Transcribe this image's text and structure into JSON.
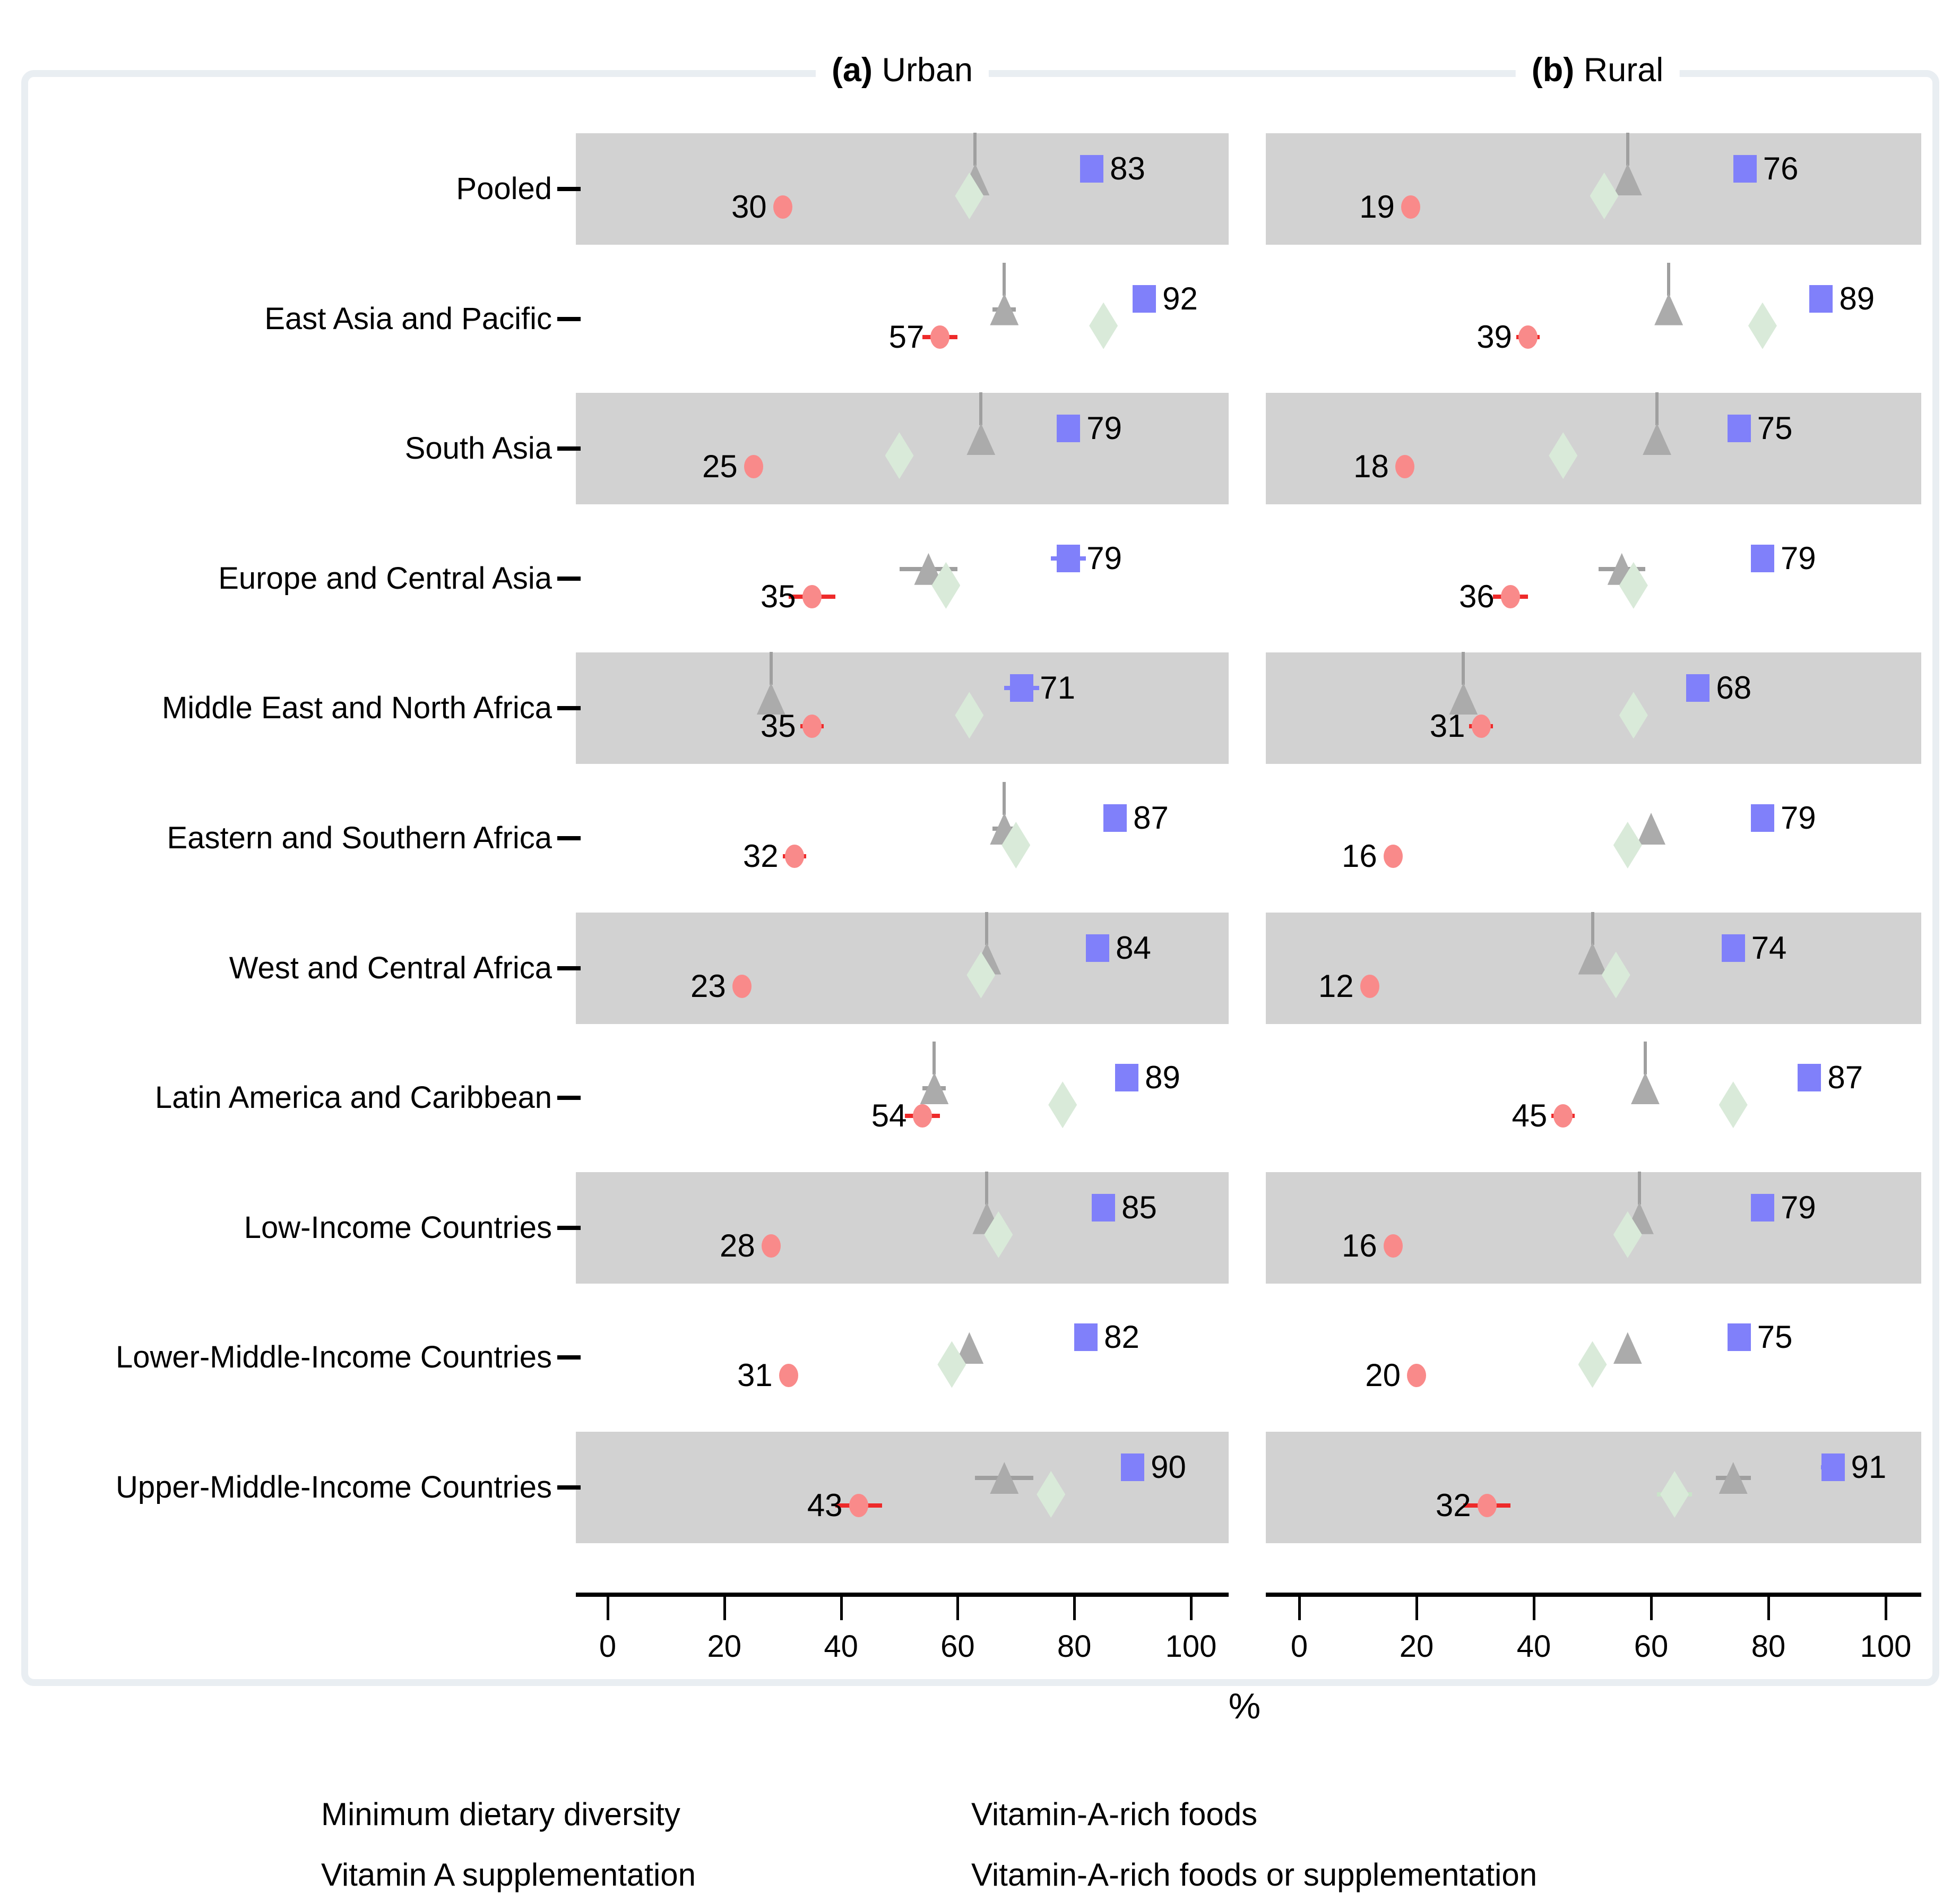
{
  "titles": {
    "a_bold": "(a)",
    "a_text": "Urban",
    "b_bold": "(b)",
    "b_text": "Rural"
  },
  "axis": {
    "xticks": [
      "0",
      "20",
      "40",
      "60",
      "80",
      "100"
    ],
    "xlabel": "%"
  },
  "colors": {
    "mdd": "#f98a8a",
    "mdd_ci": "#ee2a2a",
    "vas": "#ababab",
    "vas_ci": "#9f9f9f",
    "varf": "#d9ead9",
    "varf_ci": "#c9e4c9",
    "either": "#8080fa",
    "either_ci": "#8080fa",
    "band": "#d2d2d2",
    "frame": "#e9eef2",
    "text": "#000000"
  },
  "chart_data": {
    "type": "scatter",
    "subtype": "horizontal-dot-plot",
    "panels": [
      "Urban",
      "Rural"
    ],
    "panel_prefixes": [
      "(a)",
      "(b)"
    ],
    "xlim": [
      0,
      100
    ],
    "xticks": [
      0,
      20,
      40,
      60,
      80,
      100
    ],
    "xlabel": "%",
    "grid": false,
    "legend_position": "bottom",
    "series": [
      {
        "key": "mdd",
        "name": "Minimum dietary diversity",
        "marker": "circle",
        "color": "#f98a8a",
        "value_labeled": true
      },
      {
        "key": "vas",
        "name": "Vitamin A supplementation",
        "marker": "triangle",
        "color": "#ababab",
        "value_labeled": false
      },
      {
        "key": "varf",
        "name": "Vitamin-A-rich foods",
        "marker": "diamond",
        "color": "#d9ead9",
        "value_labeled": false
      },
      {
        "key": "either",
        "name": "Vitamin-A-rich foods or supplementation",
        "marker": "square",
        "color": "#8080fa",
        "value_labeled": true
      }
    ],
    "rows": [
      {
        "label": "Pooled",
        "urban": {
          "mdd": 30,
          "vas": 63,
          "varf": 62,
          "either": 83
        },
        "rural": {
          "mdd": 19,
          "vas": 56,
          "varf": 52,
          "either": 76
        },
        "urban_ci": {},
        "rural_ci": {},
        "urban_spike": true,
        "rural_spike": true
      },
      {
        "label": "East Asia and Pacific",
        "urban": {
          "mdd": 57,
          "vas": 68,
          "varf": 85,
          "either": 92
        },
        "rural": {
          "mdd": 39,
          "vas": 63,
          "varf": 79,
          "either": 89
        },
        "urban_ci": {
          "mdd": 3,
          "vas": 2
        },
        "rural_ci": {
          "mdd": 2
        },
        "urban_spike": true,
        "rural_spike": true
      },
      {
        "label": "South Asia",
        "urban": {
          "mdd": 25,
          "vas": 64,
          "varf": 50,
          "either": 79
        },
        "rural": {
          "mdd": 18,
          "vas": 61,
          "varf": 45,
          "either": 75
        },
        "urban_ci": {},
        "rural_ci": {},
        "urban_spike": true,
        "rural_spike": true
      },
      {
        "label": "Europe and Central Asia",
        "urban": {
          "mdd": 35,
          "vas": 55,
          "varf": 58,
          "either": 79
        },
        "rural": {
          "mdd": 36,
          "vas": 55,
          "varf": 57,
          "either": 79
        },
        "urban_ci": {
          "mdd": 4,
          "vas": 5,
          "either": 3
        },
        "rural_ci": {
          "mdd": 3,
          "vas": 4,
          "either": 2
        },
        "urban_spike": false,
        "rural_spike": false
      },
      {
        "label": "Middle East and North Africa",
        "urban": {
          "mdd": 35,
          "vas": 28,
          "varf": 62,
          "either": 71
        },
        "rural": {
          "mdd": 31,
          "vas": 28,
          "varf": 57,
          "either": 68
        },
        "urban_ci": {
          "mdd": 2,
          "either": 3
        },
        "rural_ci": {
          "mdd": 2
        },
        "urban_spike": true,
        "rural_spike": true
      },
      {
        "label": "Eastern and Southern Africa",
        "urban": {
          "mdd": 32,
          "vas": 68,
          "varf": 70,
          "either": 87
        },
        "rural": {
          "mdd": 16,
          "vas": 60,
          "varf": 56,
          "either": 79
        },
        "urban_ci": {
          "mdd": 2,
          "vas": 2,
          "either": 2
        },
        "rural_ci": {},
        "urban_spike": true,
        "rural_spike": false
      },
      {
        "label": "West and Central Africa",
        "urban": {
          "mdd": 23,
          "vas": 65,
          "varf": 64,
          "either": 84
        },
        "rural": {
          "mdd": 12,
          "vas": 50,
          "varf": 54,
          "either": 74
        },
        "urban_ci": {},
        "rural_ci": {},
        "urban_spike": true,
        "rural_spike": true
      },
      {
        "label": "Latin America and Caribbean",
        "urban": {
          "mdd": 54,
          "vas": 56,
          "varf": 78,
          "either": 89
        },
        "rural": {
          "mdd": 45,
          "vas": 59,
          "varf": 74,
          "either": 87
        },
        "urban_ci": {
          "mdd": 3,
          "vas": 2
        },
        "rural_ci": {
          "mdd": 2
        },
        "urban_spike": true,
        "rural_spike": true
      },
      {
        "label": "Low-Income Countries",
        "urban": {
          "mdd": 28,
          "vas": 65,
          "varf": 67,
          "either": 85
        },
        "rural": {
          "mdd": 16,
          "vas": 58,
          "varf": 56,
          "either": 79
        },
        "urban_ci": {},
        "rural_ci": {},
        "urban_spike": true,
        "rural_spike": true
      },
      {
        "label": "Lower-Middle-Income Countries",
        "urban": {
          "mdd": 31,
          "vas": 62,
          "varf": 59,
          "either": 82
        },
        "rural": {
          "mdd": 20,
          "vas": 56,
          "varf": 50,
          "either": 75
        },
        "urban_ci": {},
        "rural_ci": {},
        "urban_spike": false,
        "rural_spike": false
      },
      {
        "label": "Upper-Middle-Income Countries",
        "urban": {
          "mdd": 43,
          "vas": 68,
          "varf": 76,
          "either": 90
        },
        "rural": {
          "mdd": 32,
          "vas": 74,
          "varf": 64,
          "either": 91
        },
        "urban_ci": {
          "mdd": 4,
          "vas": 5,
          "varf": 2,
          "either": 2
        },
        "rural_ci": {
          "mdd": 4,
          "vas": 3,
          "varf": 3,
          "either": 2
        },
        "urban_spike": false,
        "rural_spike": false
      }
    ]
  },
  "legend": {
    "items": [
      {
        "label": "Minimum dietary diversity",
        "marker": "circle-icon"
      },
      {
        "label": "Vitamin A supplementation",
        "marker": "triangle-icon"
      },
      {
        "label": "Vitamin-A-rich foods",
        "marker": "diamond-icon"
      },
      {
        "label": "Vitamin-A-rich foods or supplementation",
        "marker": "square-icon"
      }
    ]
  }
}
